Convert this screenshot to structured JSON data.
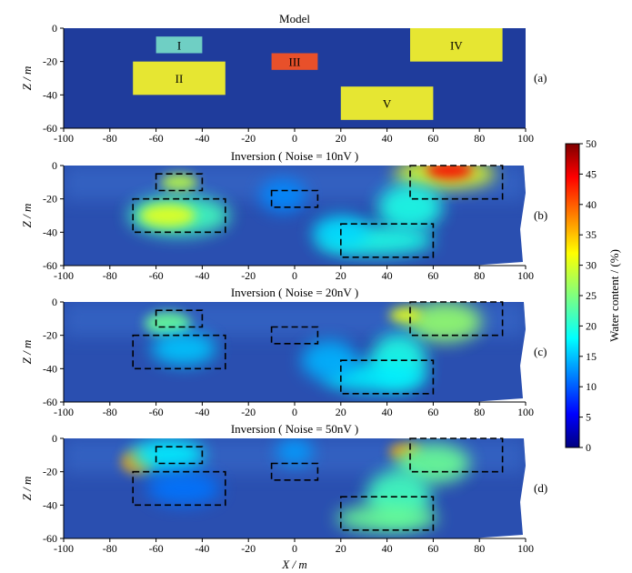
{
  "chart_data": {
    "type": "heatmap",
    "x_range": [
      -100,
      100
    ],
    "z_range": [
      -60,
      0
    ],
    "x_ticks": [
      -100,
      -80,
      -60,
      -40,
      -20,
      0,
      20,
      40,
      60,
      80,
      100
    ],
    "z_ticks": [
      0,
      -20,
      -40,
      -60
    ],
    "xlabel": "X / m",
    "ylabel": "Z / m",
    "panels": [
      {
        "id": "a",
        "title": "Model",
        "label": "(a)"
      },
      {
        "id": "b",
        "title": "Inversion ( Noise = 10nV )",
        "label": "(b)"
      },
      {
        "id": "c",
        "title": "Inversion ( Noise = 20nV )",
        "label": "(c)"
      },
      {
        "id": "d",
        "title": "Inversion ( Noise = 50nV )",
        "label": "(d)"
      }
    ],
    "model_blocks": [
      {
        "name": "I",
        "x": [
          -60,
          -40
        ],
        "z": [
          -15,
          -5
        ],
        "color": "#6fcfc4"
      },
      {
        "name": "II",
        "x": [
          -70,
          -30
        ],
        "z": [
          -40,
          -20
        ],
        "color": "#e6e632"
      },
      {
        "name": "III",
        "x": [
          -10,
          10
        ],
        "z": [
          -25,
          -15
        ],
        "color": "#e8502a"
      },
      {
        "name": "IV",
        "x": [
          50,
          90
        ],
        "z": [
          -20,
          0
        ],
        "color": "#e6e632"
      },
      {
        "name": "V",
        "x": [
          20,
          60
        ],
        "z": [
          -55,
          -35
        ],
        "color": "#e6e632"
      }
    ],
    "colorbar": {
      "label": "Water content / (%)",
      "min": 0,
      "max": 50,
      "ticks": [
        0,
        5,
        10,
        15,
        20,
        25,
        30,
        35,
        40,
        45,
        50
      ]
    }
  }
}
